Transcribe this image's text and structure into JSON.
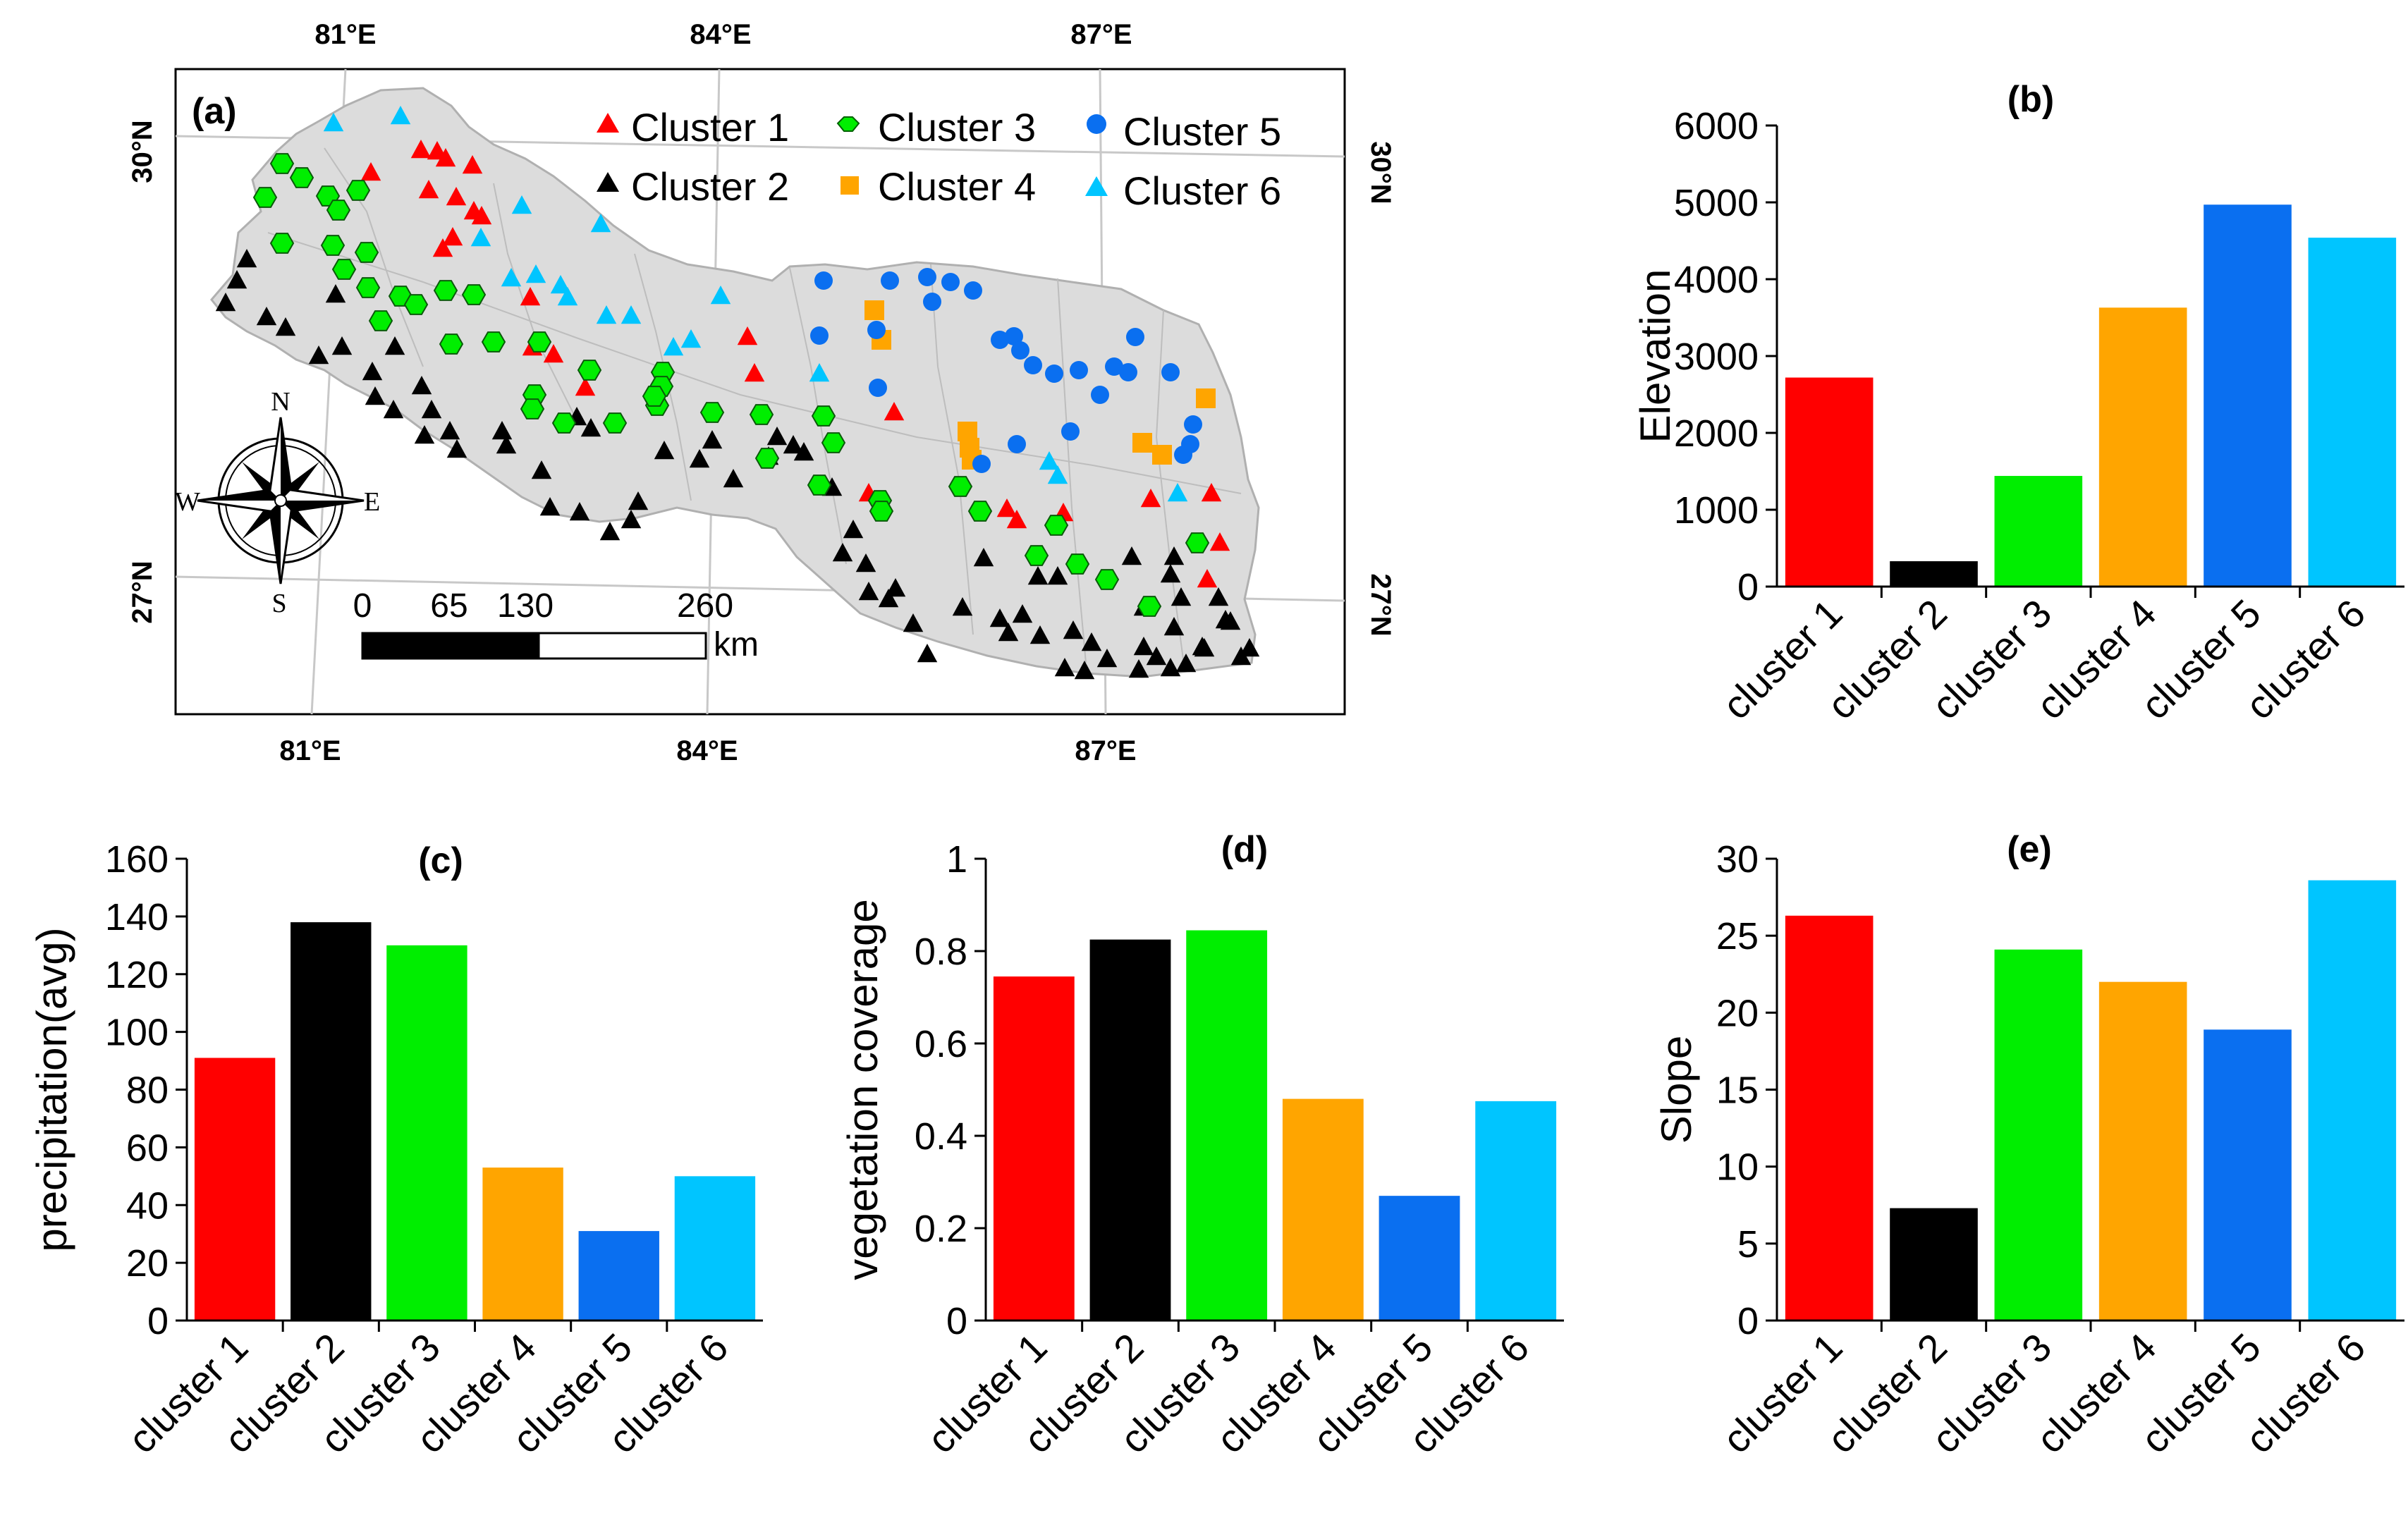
{
  "figure": {
    "map_panel": {
      "label": "(a)",
      "lon_labels": [
        "81°E",
        "84°E",
        "87°E"
      ],
      "lat_labels": [
        "30°N",
        "27°N"
      ],
      "legend": [
        {
          "label": "Cluster 1",
          "color": "#ff0000",
          "shape": "triangle"
        },
        {
          "label": "Cluster 2",
          "color": "#000000",
          "shape": "triangle"
        },
        {
          "label": "Cluster 3",
          "color": "#00ee00",
          "shape": "hexagon"
        },
        {
          "label": "Cluster 4",
          "color": "#ffa500",
          "shape": "square"
        },
        {
          "label": "Cluster 5",
          "color": "#0a6ff0",
          "shape": "circle"
        },
        {
          "label": "Cluster 6",
          "color": "#00c5ff",
          "shape": "triangle"
        }
      ],
      "compass": {
        "n": "N",
        "s": "S",
        "e": "E",
        "w": "W"
      },
      "scale_bar": {
        "ticks": [
          "0",
          "65",
          "130",
          "260"
        ],
        "unit": "km"
      }
    }
  },
  "chart_data": [
    {
      "id": "b",
      "type": "bar",
      "title": "(b)",
      "ylabel": "Elevation",
      "xlabel": "",
      "categories": [
        "cluster 1",
        "cluster 2",
        "cluster 3",
        "cluster 4",
        "cluster 5",
        "cluster 6"
      ],
      "values": [
        2720,
        330,
        1440,
        3630,
        4970,
        4540
      ],
      "ylim": [
        0,
        6000
      ],
      "yticks": [
        "0",
        "1000",
        "2000",
        "3000",
        "4000",
        "5000",
        "6000"
      ],
      "colors": [
        "#ff0000",
        "#000000",
        "#00ee00",
        "#ffa500",
        "#0a6ff0",
        "#00c5ff"
      ]
    },
    {
      "id": "c",
      "type": "bar",
      "title": "(c)",
      "ylabel": "precipitation(avg)",
      "xlabel": "",
      "categories": [
        "cluster 1",
        "cluster 2",
        "cluster 3",
        "cluster 4",
        "cluster 5",
        "cluster 6"
      ],
      "values": [
        91,
        138,
        130,
        53,
        31,
        50
      ],
      "ylim": [
        0,
        160
      ],
      "yticks": [
        "0",
        "20",
        "40",
        "60",
        "80",
        "100",
        "120",
        "140",
        "160"
      ],
      "colors": [
        "#ff0000",
        "#000000",
        "#00ee00",
        "#ffa500",
        "#0a6ff0",
        "#00c5ff"
      ]
    },
    {
      "id": "d",
      "type": "bar",
      "title": "(d)",
      "ylabel": "vegetation coverage",
      "xlabel": "",
      "categories": [
        "cluster 1",
        "cluster 2",
        "cluster 3",
        "cluster 4",
        "cluster 5",
        "cluster 6"
      ],
      "values": [
        0.745,
        0.825,
        0.845,
        0.48,
        0.27,
        0.475
      ],
      "ylim": [
        0,
        1
      ],
      "yticks": [
        "0",
        "0.2",
        "0.4",
        "0.6",
        "0.8",
        "1"
      ],
      "colors": [
        "#ff0000",
        "#000000",
        "#00ee00",
        "#ffa500",
        "#0a6ff0",
        "#00c5ff"
      ]
    },
    {
      "id": "e",
      "type": "bar",
      "title": "(e)",
      "ylabel": "Slope",
      "xlabel": "",
      "categories": [
        "cluster 1",
        "cluster 2",
        "cluster 3",
        "cluster 4",
        "cluster 5",
        "cluster 6"
      ],
      "values": [
        26.3,
        7.3,
        24.1,
        22.0,
        18.9,
        28.6
      ],
      "ylim": [
        0,
        30
      ],
      "yticks": [
        "0",
        "5",
        "10",
        "15",
        "20",
        "25",
        "30"
      ],
      "colors": [
        "#ff0000",
        "#000000",
        "#00ee00",
        "#ffa500",
        "#0a6ff0",
        "#00c5ff"
      ]
    }
  ]
}
